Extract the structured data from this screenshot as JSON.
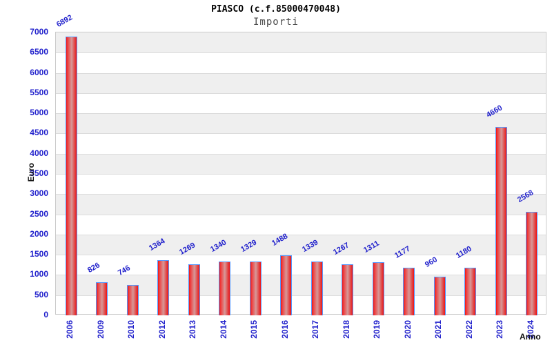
{
  "header": {
    "title": "PIASCO (c.f.85000470048)",
    "subtitle": "Importi"
  },
  "chart_data": {
    "type": "bar",
    "title": "PIASCO (c.f.85000470048)",
    "subtitle": "Importi",
    "xlabel": "Anno",
    "ylabel": "Euro",
    "categories": [
      "2006",
      "2009",
      "2010",
      "2012",
      "2013",
      "2014",
      "2015",
      "2016",
      "2017",
      "2018",
      "2019",
      "2020",
      "2021",
      "2022",
      "2023",
      "2024"
    ],
    "values": [
      6892,
      826,
      746,
      1364,
      1269,
      1340,
      1329,
      1488,
      1339,
      1267,
      1311,
      1177,
      960,
      1180,
      4660,
      2568
    ],
    "ylim": [
      0,
      7000
    ],
    "ytick_step": 500,
    "grid": "horizontal gridlines with alternating gray/white bands",
    "legend_position": "none",
    "value_labels": "above bars, rotated, blue",
    "colors": {
      "bar_fill": "#ee1414",
      "bar_highlight": "#d79898",
      "bar_border": "#5599ff",
      "axis_label_blue": "#2222cc",
      "band_gray": "#efefef",
      "gridline_gray": "#dcdcdc",
      "plot_border": "#c9c9c9",
      "title_color": "#000000",
      "subtitle_color": "#4d4d4d",
      "background": "#ffffff"
    }
  }
}
